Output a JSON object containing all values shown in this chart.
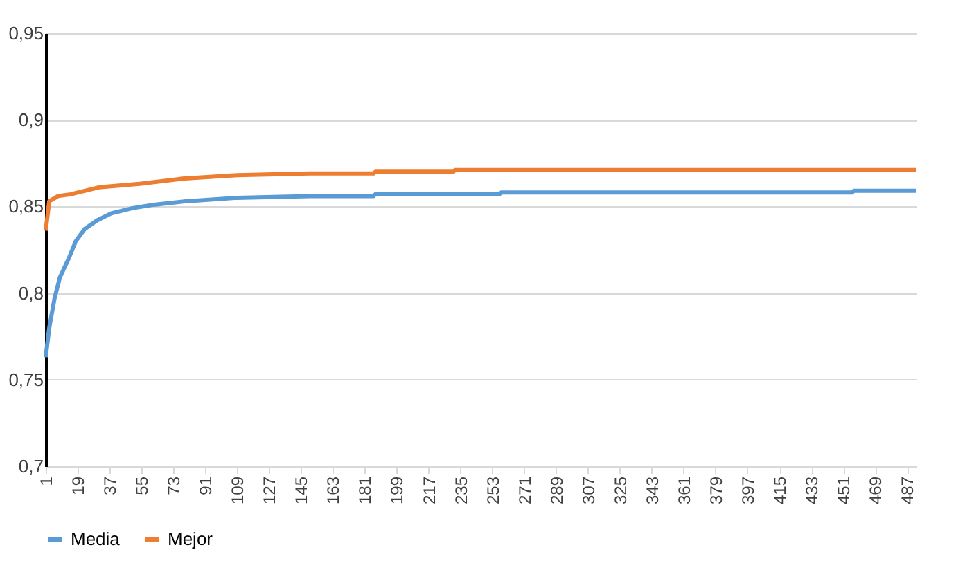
{
  "chart_data": {
    "type": "line",
    "xlim": [
      1,
      492
    ],
    "xticks": [
      1,
      19,
      37,
      55,
      73,
      91,
      109,
      127,
      145,
      163,
      181,
      199,
      217,
      235,
      253,
      271,
      289,
      307,
      325,
      343,
      361,
      379,
      397,
      415,
      433,
      451,
      469,
      487
    ],
    "ylim": [
      0.7,
      0.95
    ],
    "yticks": [
      {
        "value": 0.7,
        "label": "0,7"
      },
      {
        "value": 0.75,
        "label": "0,75"
      },
      {
        "value": 0.8,
        "label": "0,8"
      },
      {
        "value": 0.85,
        "label": "0,85"
      },
      {
        "value": 0.9,
        "label": "0,9"
      },
      {
        "value": 0.95,
        "label": "0,95"
      }
    ],
    "grid": "y",
    "legend": "bottom",
    "series": [
      {
        "name": "Media",
        "color": "#5b9bd5",
        "x": [
          1,
          3,
          6,
          9,
          14,
          18,
          23,
          30,
          38,
          50,
          62,
          80,
          109,
          150,
          186,
          187,
          257,
          258,
          456,
          457,
          492
        ],
        "values": [
          0.763,
          0.78,
          0.797,
          0.809,
          0.82,
          0.83,
          0.837,
          0.842,
          0.846,
          0.849,
          0.851,
          0.853,
          0.855,
          0.856,
          0.856,
          0.857,
          0.857,
          0.858,
          0.858,
          0.859,
          0.859
        ]
      },
      {
        "name": "Mejor",
        "color": "#ed7d31",
        "x": [
          1,
          3,
          8,
          15,
          31,
          54,
          78,
          109,
          150,
          186,
          187,
          231,
          232,
          492
        ],
        "values": [
          0.836,
          0.853,
          0.856,
          0.857,
          0.861,
          0.863,
          0.866,
          0.868,
          0.869,
          0.869,
          0.87,
          0.87,
          0.871,
          0.871
        ]
      }
    ]
  }
}
